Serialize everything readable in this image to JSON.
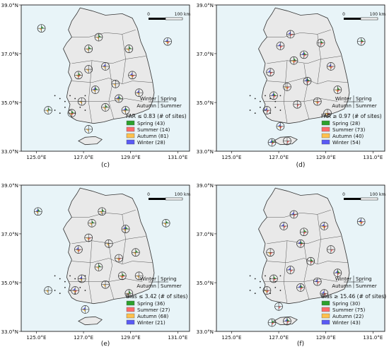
{
  "panels": [
    {
      "id": "c",
      "caption": "(c)",
      "legend_title": "FAR ≤ 0.83 (# of sites)",
      "legend_items": [
        {
          "label": "Spring (43)",
          "color": "#2ca02c"
        },
        {
          "label": "Summer (14)",
          "color": "#ff6b6b"
        },
        {
          "label": "Autumn (81)",
          "color": "#ffc14d"
        },
        {
          "label": "Winter (28)",
          "color": "#5a5af5"
        }
      ],
      "season_key": {
        "tl": "Winter",
        "tr": "Spring",
        "bl": "Autumn",
        "br": "Summer"
      },
      "lat_labels": [
        "39.0°N",
        "37.0°N",
        "35.0°N",
        "33.0°N"
      ],
      "lon_labels": [
        "125.0°E",
        "127.0°E",
        "129.0°E",
        "131.0°E"
      ],
      "scalebar": {
        "start": "0",
        "end": "100 km"
      }
    },
    {
      "id": "d",
      "caption": "(d)",
      "legend_title": "FAR ≥ 0.97 (# of sites)",
      "legend_items": [
        {
          "label": "Spring (28)",
          "color": "#2ca02c"
        },
        {
          "label": "Summer (73)",
          "color": "#ff6b6b"
        },
        {
          "label": "Autumn (40)",
          "color": "#ffc14d"
        },
        {
          "label": "Winter (54)",
          "color": "#5a5af5"
        }
      ],
      "season_key": {
        "tl": "Winter",
        "tr": "Spring",
        "bl": "Autumn",
        "br": "Summer"
      },
      "lat_labels": [
        "39.0°N",
        "37.0°N",
        "35.0°N",
        "33.0°N"
      ],
      "lon_labels": [
        "125.0°E",
        "127.0°E",
        "129.0°E",
        "131.0°E"
      ],
      "scalebar": {
        "start": "0",
        "end": "100 km"
      }
    },
    {
      "id": "e",
      "caption": "(e)",
      "legend_title": "Bias ≤ 3.42 (# of sites)",
      "legend_items": [
        {
          "label": "Spring (36)",
          "color": "#2ca02c"
        },
        {
          "label": "Summer (27)",
          "color": "#ff6b6b"
        },
        {
          "label": "Autumn (68)",
          "color": "#ffc14d"
        },
        {
          "label": "Winter (21)",
          "color": "#5a5af5"
        }
      ],
      "season_key": {
        "tl": "Winter",
        "tr": "Spring",
        "bl": "Autumn",
        "br": "Summer"
      },
      "lat_labels": [
        "39.0°N",
        "37.0°N",
        "35.0°N",
        "33.0°N"
      ],
      "lon_labels": [
        "125.0°E",
        "127.0°E",
        "129.0°E",
        "131.0°E"
      ],
      "scalebar": {
        "start": "0",
        "end": "100 km"
      }
    },
    {
      "id": "f",
      "caption": "(f)",
      "legend_title": "Bias ≥ 15.46 (# of sites)",
      "legend_items": [
        {
          "label": "Spring (30)",
          "color": "#2ca02c"
        },
        {
          "label": "Summer (75)",
          "color": "#ff6b6b"
        },
        {
          "label": "Autumn (22)",
          "color": "#ffc14d"
        },
        {
          "label": "Winter (43)",
          "color": "#5a5af5"
        }
      ],
      "season_key": {
        "tl": "Winter",
        "tr": "Spring",
        "bl": "Autumn",
        "br": "Summer"
      },
      "lat_labels": [
        "39.0°N",
        "37.0°N",
        "35.0°N",
        "33.0°N"
      ],
      "lon_labels": [
        "125.0°E",
        "127.0°E",
        "129.0°E",
        "131.0°E"
      ],
      "scalebar": {
        "start": "0",
        "end": "100 km"
      }
    }
  ],
  "colors": {
    "sea": "#e8f4f8",
    "land": "#e9e9e9",
    "border": "#333333",
    "spring": "#2ca02c",
    "summer": "#ff6b6b",
    "autumn": "#ffc14d",
    "winter": "#5a5af5"
  }
}
